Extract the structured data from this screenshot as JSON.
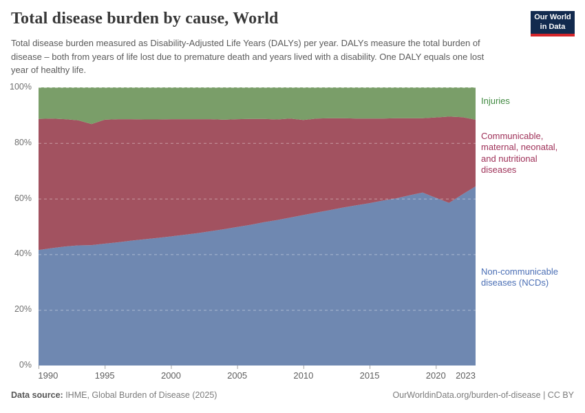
{
  "header": {
    "title": "Total disease burden by cause, World",
    "subtitle": "Total disease burden measured as Disability-Adjusted Life Years (DALYs) per year. DALYs measure the total burden of disease – both from years of life lost due to premature death and years lived with a disability. One DALY equals one lost year of healthy life.",
    "logo": {
      "line1": "Our World",
      "line2": "in Data",
      "bg_color": "#122a4e",
      "accent_color": "#d4252a"
    }
  },
  "chart_data": {
    "type": "area",
    "stacked": true,
    "normalized_percent": true,
    "grid": true,
    "legend_position": "right",
    "ylim": [
      0,
      100
    ],
    "y_ticks": [
      0,
      20,
      40,
      60,
      80,
      100
    ],
    "y_grid": [
      20,
      40,
      60,
      80,
      100
    ],
    "x_ticks": [
      1990,
      1995,
      2000,
      2005,
      2010,
      2015,
      2020,
      2023
    ],
    "years": [
      1990,
      1991,
      1992,
      1993,
      1994,
      1995,
      1996,
      1997,
      1998,
      1999,
      2000,
      2001,
      2002,
      2003,
      2004,
      2005,
      2006,
      2007,
      2008,
      2009,
      2010,
      2011,
      2012,
      2013,
      2014,
      2015,
      2016,
      2017,
      2018,
      2019,
      2020,
      2021,
      2022,
      2023
    ],
    "series": [
      {
        "name": "Non-communicable diseases (NCDs)",
        "color": "#6f88b1",
        "label_color": "#4b6fb5",
        "values": [
          41.5,
          42.2,
          42.8,
          43.2,
          43.3,
          43.8,
          44.3,
          44.9,
          45.4,
          45.9,
          46.4,
          47.0,
          47.6,
          48.3,
          49.0,
          49.8,
          50.6,
          51.5,
          52.3,
          53.2,
          54.1,
          55.0,
          55.9,
          56.8,
          57.6,
          58.4,
          59.3,
          60.1,
          61.2,
          62.2,
          60.3,
          58.5,
          61.5,
          64.4
        ]
      },
      {
        "name": "Communicable, maternal, neonatal, and nutritional diseases",
        "color": "#a25260",
        "label_color": "#9e2f57",
        "values": [
          47.2,
          46.6,
          45.8,
          45.0,
          43.5,
          44.6,
          44.3,
          43.7,
          43.1,
          42.6,
          42.2,
          41.6,
          41.0,
          40.3,
          39.4,
          38.8,
          38.1,
          37.2,
          36.2,
          35.6,
          34.2,
          33.8,
          33.0,
          32.1,
          31.2,
          30.4,
          29.5,
          28.8,
          27.7,
          26.7,
          28.9,
          31.0,
          27.8,
          24.0
        ]
      },
      {
        "name": "Injuries",
        "color": "#7a9e69",
        "label_color": "#418a41",
        "values": [
          11.3,
          11.2,
          11.4,
          11.8,
          13.2,
          11.6,
          11.4,
          11.4,
          11.5,
          11.5,
          11.4,
          11.4,
          11.4,
          11.4,
          11.6,
          11.4,
          11.3,
          11.3,
          11.5,
          11.2,
          11.7,
          11.2,
          11.1,
          11.1,
          11.2,
          11.2,
          11.2,
          11.1,
          11.1,
          11.1,
          10.8,
          10.5,
          10.7,
          11.6
        ]
      }
    ],
    "title": "Total disease burden by cause, World",
    "xlabel": "",
    "ylabel": ""
  },
  "footer": {
    "data_source_label": "Data source:",
    "data_source_value": " IHME, Global Burden of Disease (2025)",
    "right_text": "OurWorldinData.org/burden-of-disease | CC BY"
  }
}
